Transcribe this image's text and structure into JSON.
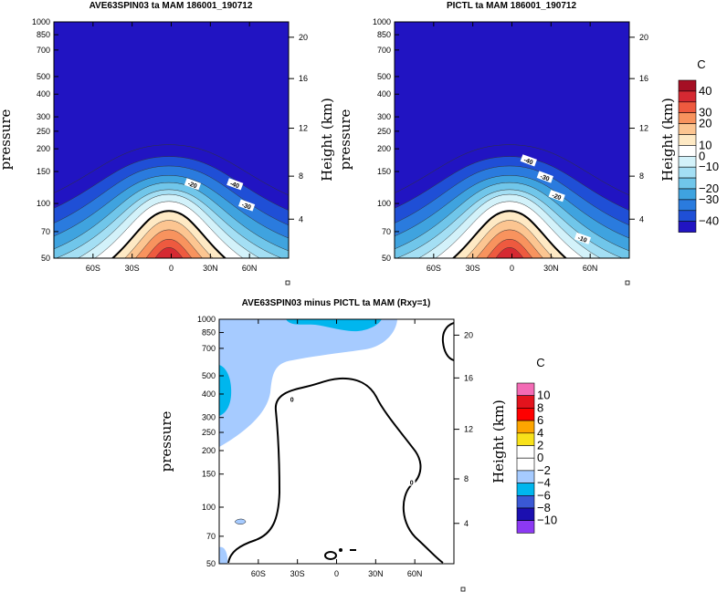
{
  "chart_data": [
    {
      "type": "heatmap",
      "title": "AVE63SPIN03 ta MAM 186001_190712",
      "ylabel": "pressure",
      "ylabel_right": "Height (km)",
      "x_ticks": [
        "60S",
        "30S",
        "0",
        "30N",
        "60N"
      ],
      "x_tick_values": [
        -60,
        -30,
        0,
        30,
        60
      ],
      "xlim": [
        -90,
        90
      ],
      "y_ticks": [
        "50",
        "70",
        "100",
        "150",
        "200",
        "250",
        "300",
        "400",
        "500",
        "700",
        "850",
        "1000"
      ],
      "y_tick_values": [
        50,
        70,
        100,
        150,
        200,
        250,
        300,
        400,
        500,
        700,
        850,
        1000
      ],
      "ylim": [
        1000,
        50
      ],
      "y_scale": "log",
      "right_ticks": [
        "20",
        "16",
        "12",
        "8",
        "4"
      ],
      "right_tick_values": [
        20,
        16,
        12,
        8,
        4
      ],
      "contour_labels": [
        "-40",
        "-30",
        "-20"
      ],
      "contour_label_values": [
        -40,
        -30,
        -20
      ]
    },
    {
      "type": "heatmap",
      "title": "PICTL ta MAM 186001_190712",
      "ylabel": "pressure",
      "ylabel_right": "Height (km)",
      "x_ticks": [
        "60S",
        "30S",
        "0",
        "30N",
        "60N"
      ],
      "x_tick_values": [
        -60,
        -30,
        0,
        30,
        60
      ],
      "xlim": [
        -90,
        90
      ],
      "y_ticks": [
        "50",
        "70",
        "100",
        "150",
        "200",
        "250",
        "300",
        "400",
        "500",
        "700",
        "850",
        "1000"
      ],
      "y_tick_values": [
        50,
        70,
        100,
        150,
        200,
        250,
        300,
        400,
        500,
        700,
        850,
        1000
      ],
      "ylim": [
        1000,
        50
      ],
      "y_scale": "log",
      "right_ticks": [
        "20",
        "16",
        "12",
        "8",
        "4"
      ],
      "right_tick_values": [
        20,
        16,
        12,
        8,
        4
      ],
      "contour_labels": [
        "-40",
        "-30",
        "-20",
        "-10"
      ],
      "contour_label_values": [
        -40,
        -30,
        -20,
        -10
      ],
      "colorbar": {
        "unit": "C",
        "labels": [
          "40",
          "30",
          "20",
          "10",
          "0",
          "−10",
          "−20",
          "−30",
          "−40"
        ],
        "colors": [
          "#a50f24",
          "#d52932",
          "#ee5a3f",
          "#f8935e",
          "#fcc591",
          "#fee9c4",
          "#ffffff",
          "#d3f2fa",
          "#a4dff4",
          "#70c6ea",
          "#3fa3df",
          "#2a7bde",
          "#1f4fd6",
          "#2114c2"
        ]
      }
    },
    {
      "type": "heatmap",
      "title": "AVE63SPIN03 minus PICTL ta MAM (Rxy=1)",
      "ylabel": "pressure",
      "ylabel_right": "Height (km)",
      "x_ticks": [
        "60S",
        "30S",
        "0",
        "30N",
        "60N"
      ],
      "x_tick_values": [
        -60,
        -30,
        0,
        30,
        60
      ],
      "xlim": [
        -90,
        90
      ],
      "y_ticks": [
        "50",
        "70",
        "100",
        "150",
        "200",
        "250",
        "300",
        "400",
        "500",
        "700",
        "850",
        "1000"
      ],
      "y_tick_values": [
        50,
        70,
        100,
        150,
        200,
        250,
        300,
        400,
        500,
        700,
        850,
        1000
      ],
      "ylim": [
        1000,
        50
      ],
      "y_scale": "log",
      "right_ticks": [
        "20",
        "16",
        "12",
        "8",
        "4"
      ],
      "right_tick_values": [
        20,
        16,
        12,
        8,
        4
      ],
      "contour_labels": [
        "0",
        "0"
      ],
      "contour_label_values": [
        0,
        0
      ],
      "colorbar": {
        "unit": "C",
        "labels": [
          "10",
          "8",
          "6",
          "4",
          "2",
          "0",
          "−2",
          "−4",
          "−6",
          "−8",
          "−10"
        ],
        "colors": [
          "#f36bb5",
          "#e3131d",
          "#fe0000",
          "#fda500",
          "#f8e11a",
          "#ffffff",
          "#ffffff",
          "#a6cbff",
          "#00b6ee",
          "#3a58d5",
          "#1b0fb0",
          "#8c39f3"
        ]
      }
    }
  ]
}
